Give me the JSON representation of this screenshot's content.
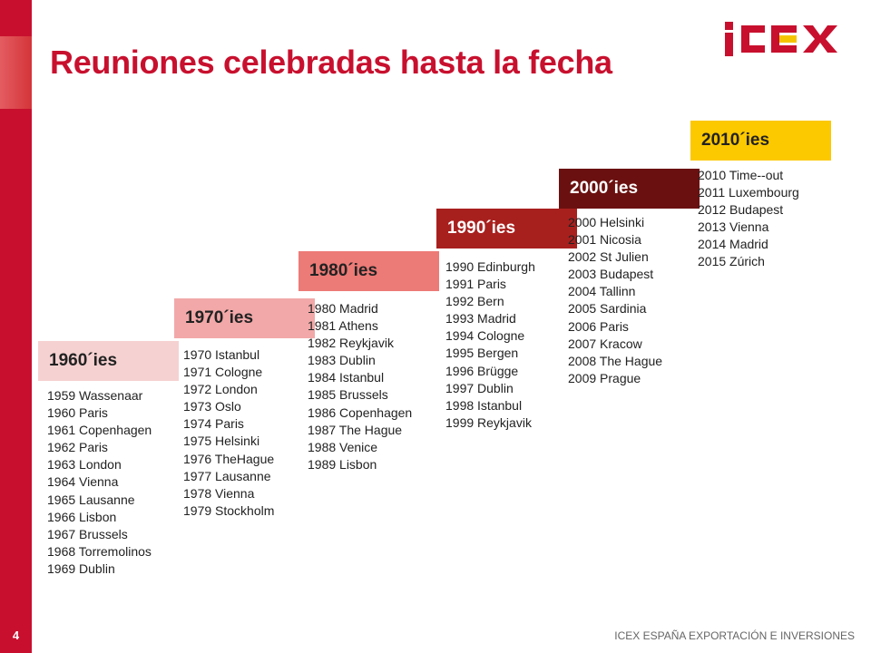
{
  "page": {
    "number": "4",
    "title": "Reuniones celebradas hasta la fecha",
    "footer": "ICEX ESPAÑA EXPORTACIÓN  E INVERSIONES"
  },
  "logo": {
    "text": "ICEX",
    "color_primary": "#c8102e",
    "color_accent": "#f5c400"
  },
  "colors": {
    "brand": "#c8102e"
  },
  "decades": [
    {
      "label": "1960´ies",
      "bg": "#f6d1d1",
      "fg": "#222222",
      "items": [
        "1959   Wassenaar",
        "1960   Paris",
        "1961   Copenhagen",
        "1962   Paris",
        "1963   London",
        "1964   Vienna",
        "1965   Lausanne",
        "1966   Lisbon",
        "1967   Brussels",
        "1968   Torremolinos",
        "1969   Dublin"
      ]
    },
    {
      "label": "1970´ies",
      "bg": "#f2a8a8",
      "fg": "#222222",
      "items": [
        "1970  Istanbul",
        "1971  Cologne",
        "1972  London",
        "1973  Oslo",
        "1974  Paris",
        "1975  Helsinki",
        "1976  TheHague",
        "1977  Lausanne",
        "1978  Vienna",
        "1979  Stockholm"
      ]
    },
    {
      "label": "1980´ies",
      "bg": "#ec7a76",
      "fg": "#222222",
      "items": [
        "1980  Madrid",
        "1981  Athens",
        "1982  Reykjavik",
        "1983  Dublin",
        "1984  Istanbul",
        "1985  Brussels",
        "1986  Copenhagen",
        "1987  The  Hague",
        "1988  Venice",
        "1989  Lisbon"
      ]
    },
    {
      "label": "1990´ies",
      "bg": "#a8201e",
      "fg": "#ffffff",
      "items": [
        "1990  Edinburgh",
        "1991  Paris",
        "1992  Bern",
        "1993  Madrid",
        "1994  Cologne",
        "1995  Bergen",
        "1996  Brügge",
        "1997  Dublin",
        "1998  Istanbul",
        "1999  Reykjavik"
      ]
    },
    {
      "label": "2000´ies",
      "bg": "#6b1010",
      "fg": "#ffffff",
      "items": [
        "2000  Helsinki",
        "2001  Nicosia",
        "2002  St  Julien",
        "2003  Budapest",
        "2004  Tallinn",
        "2005  Sardinia",
        "2006  Paris",
        "2007  Kracow",
        "2008  The  Hague",
        "2009  Prague"
      ]
    },
    {
      "label": "2010´ies",
      "bg": "#fcc800",
      "fg": "#222222",
      "items": [
        "2010  Time--out",
        "2011   Luxembourg",
        "2012   Budapest",
        "2013   Vienna",
        "2014   Madrid",
        "2015   Zúrich"
      ]
    }
  ]
}
